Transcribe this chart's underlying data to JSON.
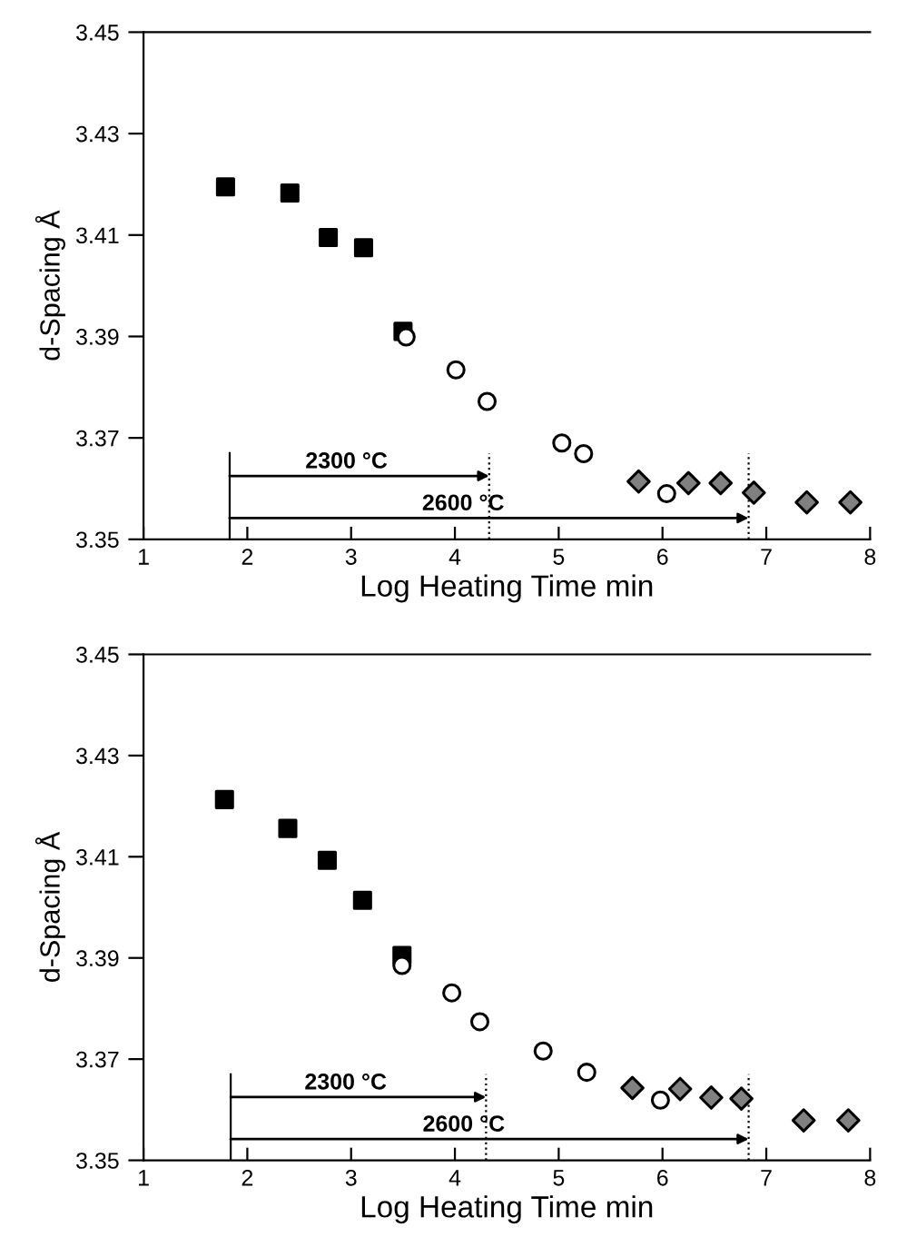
{
  "chart_data": [
    {
      "type": "scatter",
      "xlabel": "Log Heating Time min",
      "ylabel": "d-Spacing Å",
      "xlim": [
        1,
        8
      ],
      "ylim": [
        3.35,
        3.45
      ],
      "xticks": [
        1,
        2,
        3,
        4,
        5,
        6,
        7,
        8
      ],
      "yticks": [
        {
          "value": 3.35,
          "label": "3.35"
        },
        {
          "value": 3.37,
          "label": "3.37"
        },
        {
          "value": 3.39,
          "label": "3.39"
        },
        {
          "value": 3.41,
          "label": "3.41"
        },
        {
          "value": 3.43,
          "label": "3.43"
        },
        {
          "value": 3.45,
          "label": "3.45"
        }
      ],
      "grid": false,
      "legend": false,
      "series": [
        {
          "color": "#000000",
          "marker": "square",
          "x": [
            1.79,
            2.41,
            2.78,
            3.12,
            3.5
          ],
          "values": [
            3.4195,
            3.4183,
            3.4095,
            3.4075,
            3.391
          ]
        },
        {
          "color": "#ffffff",
          "marker": "circle",
          "x": [
            3.53,
            4.01,
            4.31,
            5.03,
            5.24,
            6.04
          ],
          "values": [
            3.3899,
            3.3834,
            3.3772,
            3.369,
            3.3669,
            3.359
          ]
        },
        {
          "color": "#808080",
          "marker": "diamond",
          "x": [
            5.77,
            6.25,
            6.56,
            6.88,
            7.39,
            7.81
          ],
          "values": [
            3.3614,
            3.3611,
            3.3611,
            3.3592,
            3.3573,
            3.3573
          ]
        }
      ],
      "ref_lines": [
        {
          "axis": "x",
          "value": 1.83,
          "line_style": "solid"
        },
        {
          "axis": "x",
          "value": 4.33,
          "line_style": "dotted"
        },
        {
          "axis": "x",
          "value": 6.83,
          "line_style": "dotted"
        }
      ],
      "annotations": [
        "2300 °C",
        "2600 °C"
      ]
    },
    {
      "type": "scatter",
      "xlabel": "Log Heating Time min",
      "ylabel": "d-Spacing Å",
      "xlim": [
        1,
        8
      ],
      "ylim": [
        3.35,
        3.45
      ],
      "xticks": [
        1,
        2,
        3,
        4,
        5,
        6,
        7,
        8
      ],
      "yticks": [
        {
          "value": 3.35,
          "label": "3.35"
        },
        {
          "value": 3.37,
          "label": "3.37"
        },
        {
          "value": 3.39,
          "label": "3.39"
        },
        {
          "value": 3.41,
          "label": "3.41"
        },
        {
          "value": 3.43,
          "label": "3.43"
        },
        {
          "value": 3.45,
          "label": "3.45"
        }
      ],
      "grid": false,
      "legend": false,
      "series": [
        {
          "color": "#000000",
          "marker": "square",
          "x": [
            1.78,
            2.39,
            2.77,
            3.11,
            3.49
          ],
          "values": [
            3.4213,
            3.4156,
            3.4093,
            3.4014,
            3.3905
          ]
        },
        {
          "color": "#ffffff",
          "marker": "circle",
          "x": [
            3.49,
            3.97,
            4.24,
            4.85,
            5.27,
            5.98
          ],
          "values": [
            3.3885,
            3.3831,
            3.3774,
            3.3716,
            3.3674,
            3.3619
          ]
        },
        {
          "color": "#808080",
          "marker": "diamond",
          "x": [
            5.71,
            6.17,
            6.47,
            6.76,
            7.36,
            7.79
          ],
          "values": [
            3.3643,
            3.3641,
            3.3624,
            3.3622,
            3.3579,
            3.3579
          ]
        }
      ],
      "ref_lines": [
        {
          "axis": "x",
          "value": 1.84,
          "line_style": "solid"
        },
        {
          "axis": "x",
          "value": 4.3,
          "line_style": "dotted"
        },
        {
          "axis": "x",
          "value": 6.83,
          "line_style": "dotted"
        }
      ],
      "annotations": [
        "2300 °C",
        "2600 °C"
      ]
    }
  ]
}
